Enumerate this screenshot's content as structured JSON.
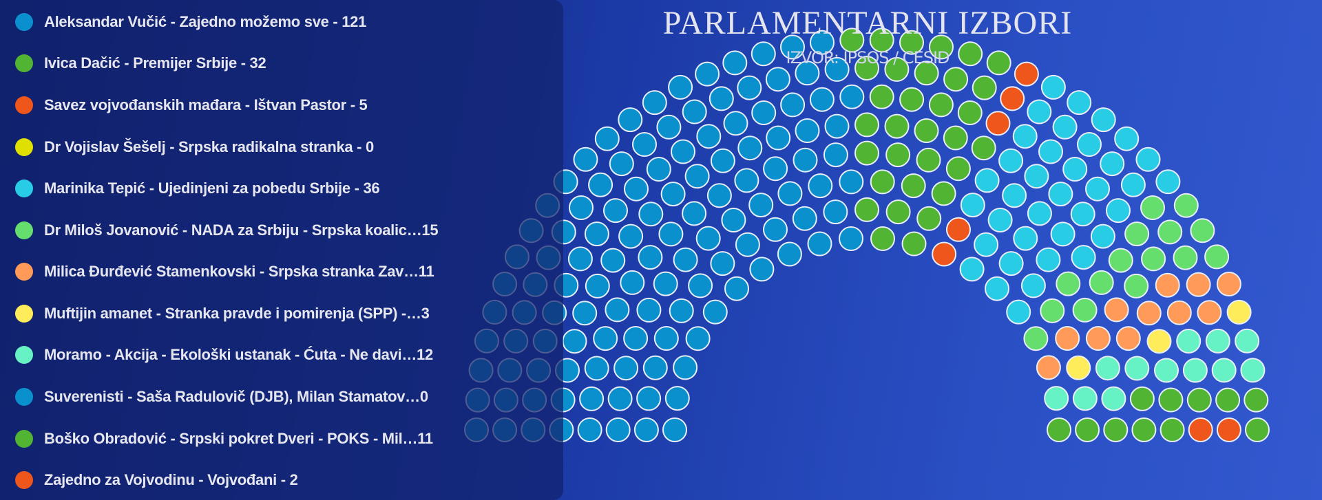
{
  "chart_data": {
    "type": "parliament",
    "title": "PARLAMENTARNI IZBORI",
    "subtitle": "IZVOR: IPSOS / CESID",
    "legend_position": "left",
    "parties": [
      {
        "label": "Aleksandar Vučić - Zajedno možemo sve - 121",
        "seats": 121,
        "color": "#0a90cc"
      },
      {
        "label": "Ivica Dačić - Premijer Srbije - 32",
        "seats": 32,
        "color": "#52b433"
      },
      {
        "label": "Savez vojvođanskih mađara - Ištvan Pastor - 5",
        "seats": 5,
        "color": "#ee561c"
      },
      {
        "label": "Dr Vojislav Šešelj - Srpska radikalna stranka - 0",
        "seats": 0,
        "color": "#e0e000"
      },
      {
        "label": "Marinika Tepić - Ujedinjeni za pobedu Srbije - 36",
        "seats": 36,
        "color": "#28cce4"
      },
      {
        "label": "Dr Miloš Jovanović - NADA za Srbiju - Srpska koalic…15",
        "seats": 15,
        "color": "#66de6e"
      },
      {
        "label": "Milica Đurđević Stamenkovski - Srpska stranka Zav…11",
        "seats": 11,
        "color": "#ff9a58"
      },
      {
        "label": "Muftijin amanet - Stranka pravde i pomirenja (SPP) -…3",
        "seats": 3,
        "color": "#ffec5a"
      },
      {
        "label": "Moramo - Akcija - Ekološki ustanak - Ćuta - Ne davi…12",
        "seats": 12,
        "color": "#66f2c4"
      },
      {
        "label": "Suverenisti - Saša Radulovič (DJB), Milan Stamatov…0",
        "seats": 0,
        "color": "#0a90cc"
      },
      {
        "label": "Boško Obradović - Srpski pokret Dveri - POKS - Mil…11",
        "seats": 11,
        "color": "#52b433"
      },
      {
        "label": "Zajedno za Vojvodinu - Vojvođani - 2",
        "seats": 2,
        "color": "#ee561c"
      }
    ]
  }
}
